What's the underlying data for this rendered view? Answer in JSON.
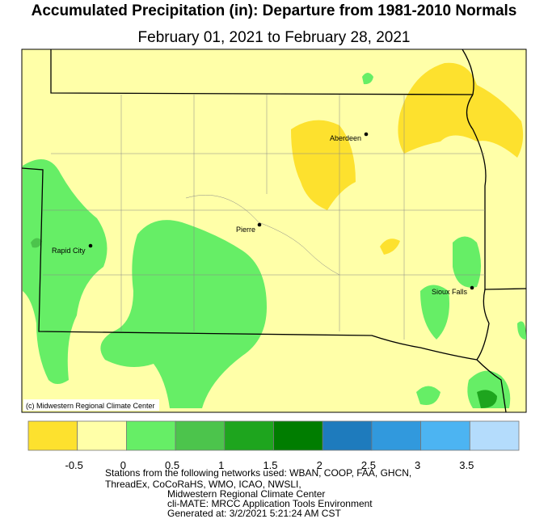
{
  "title": "Accumulated Precipitation (in): Departure from 1981-2010 Normals",
  "subtitle": "February 01, 2021 to February 28, 2021",
  "cities": [
    {
      "label": "Aberdeen"
    },
    {
      "label": "Pierre"
    },
    {
      "label": "Rapid City"
    },
    {
      "label": "Sioux Falls"
    }
  ],
  "credit": "(c) Midwestern Regional Climate Center",
  "legend": {
    "colors": [
      "#fde12e",
      "#ffffa8",
      "#66ee66",
      "#4cc44c",
      "#1ea51e",
      "#007d00",
      "#1e7bbd",
      "#3199dd",
      "#4cb4f2",
      "#b4dcfc"
    ],
    "ticks": [
      -0.5,
      0,
      0.5,
      1,
      1.5,
      2,
      2.5,
      3,
      3.5
    ]
  },
  "footer": [
    "Stations from the following networks used: WBAN, COOP, FAA, GHCN,",
    "ThreadEx, CoCoRaHS, WMO, ICAO, NWSLI,",
    "Midwestern Regional Climate Center",
    "cli-MATE: MRCC Application Tools Environment",
    "Generated at: 3/2/2021 5:21:24 AM CST"
  ]
}
